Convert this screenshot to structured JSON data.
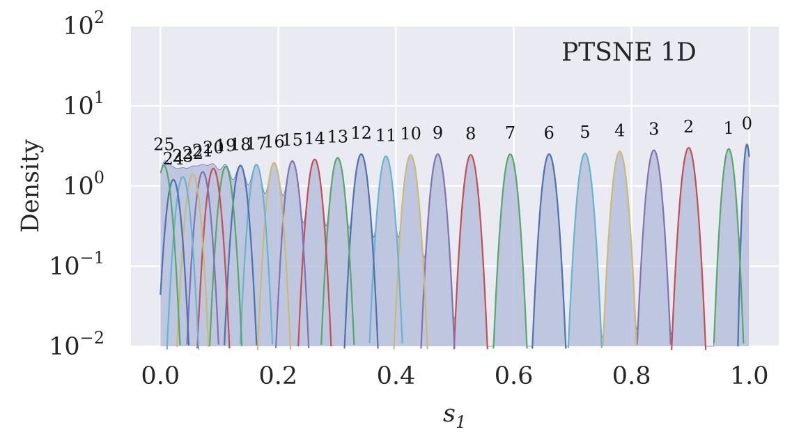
{
  "chart_data": {
    "type": "area",
    "title": "PTSNE 1D",
    "xlabel": "s",
    "xlabel_subscript": "1",
    "ylabel": "Density",
    "xlim": [
      -0.05,
      1.05
    ],
    "ylim": [
      0.01,
      100
    ],
    "yscale": "log",
    "grid": true,
    "x_ticks": [
      {
        "value": 0.0,
        "label": "0.0"
      },
      {
        "value": 0.2,
        "label": "0.2"
      },
      {
        "value": 0.4,
        "label": "0.4"
      },
      {
        "value": 0.6,
        "label": "0.6"
      },
      {
        "value": 0.8,
        "label": "0.8"
      },
      {
        "value": 1.0,
        "label": "1.0"
      }
    ],
    "y_ticks": [
      {
        "value": 100,
        "base": "10",
        "exp": "2"
      },
      {
        "value": 10,
        "base": "10",
        "exp": "1"
      },
      {
        "value": 1,
        "base": "10",
        "exp": "0"
      },
      {
        "value": 0.1,
        "base": "10",
        "exp": "−1"
      },
      {
        "value": 0.01,
        "base": "10",
        "exp": "−2"
      }
    ],
    "colors": {
      "background": "#eaeaf2",
      "grid": "#ffffff",
      "fill": "#b7c0dd",
      "fill_edge": "#6a77b8",
      "palette": [
        "#4c72b0",
        "#55a868",
        "#c44e52",
        "#8172b2",
        "#ccb974",
        "#64b5cd"
      ]
    },
    "components": [
      {
        "label": "0",
        "center": 0.996,
        "peak": 3.3,
        "sigma": 0.0045
      },
      {
        "label": "1",
        "center": 0.965,
        "peak": 2.9,
        "sigma": 0.0075
      },
      {
        "label": "2",
        "center": 0.897,
        "peak": 3.0,
        "sigma": 0.0085
      },
      {
        "label": "3",
        "center": 0.838,
        "peak": 2.8,
        "sigma": 0.0085
      },
      {
        "label": "4",
        "center": 0.78,
        "peak": 2.7,
        "sigma": 0.0085
      },
      {
        "label": "5",
        "center": 0.721,
        "peak": 2.55,
        "sigma": 0.0085
      },
      {
        "label": "6",
        "center": 0.66,
        "peak": 2.5,
        "sigma": 0.0085
      },
      {
        "label": "7",
        "center": 0.594,
        "peak": 2.5,
        "sigma": 0.0085
      },
      {
        "label": "8",
        "center": 0.527,
        "peak": 2.45,
        "sigma": 0.0085
      },
      {
        "label": "9",
        "center": 0.471,
        "peak": 2.5,
        "sigma": 0.0085
      },
      {
        "label": "10",
        "center": 0.425,
        "peak": 2.45,
        "sigma": 0.0085
      },
      {
        "label": "11",
        "center": 0.383,
        "peak": 2.35,
        "sigma": 0.0085
      },
      {
        "label": "12",
        "center": 0.341,
        "peak": 2.5,
        "sigma": 0.0085
      },
      {
        "label": "13",
        "center": 0.301,
        "peak": 2.25,
        "sigma": 0.0085
      },
      {
        "label": "14",
        "center": 0.262,
        "peak": 2.15,
        "sigma": 0.0085
      },
      {
        "label": "15",
        "center": 0.224,
        "peak": 2.05,
        "sigma": 0.0085
      },
      {
        "label": "16",
        "center": 0.193,
        "peak": 1.95,
        "sigma": 0.0085
      },
      {
        "label": "17",
        "center": 0.163,
        "peak": 1.85,
        "sigma": 0.0085
      },
      {
        "label": "18",
        "center": 0.136,
        "peak": 1.8,
        "sigma": 0.0085
      },
      {
        "label": "19",
        "center": 0.111,
        "peak": 1.75,
        "sigma": 0.0085
      },
      {
        "label": "20",
        "center": 0.09,
        "peak": 1.65,
        "sigma": 0.0085
      },
      {
        "label": "21",
        "center": 0.072,
        "peak": 1.5,
        "sigma": 0.0085
      },
      {
        "label": "22",
        "center": 0.055,
        "peak": 1.4,
        "sigma": 0.0085
      },
      {
        "label": "23",
        "center": 0.038,
        "peak": 1.3,
        "sigma": 0.0085
      },
      {
        "label": "24",
        "center": 0.022,
        "peak": 1.2,
        "sigma": 0.0085
      },
      {
        "label": "25",
        "center": 0.006,
        "peak": 1.8,
        "sigma": 0.0085
      }
    ]
  }
}
